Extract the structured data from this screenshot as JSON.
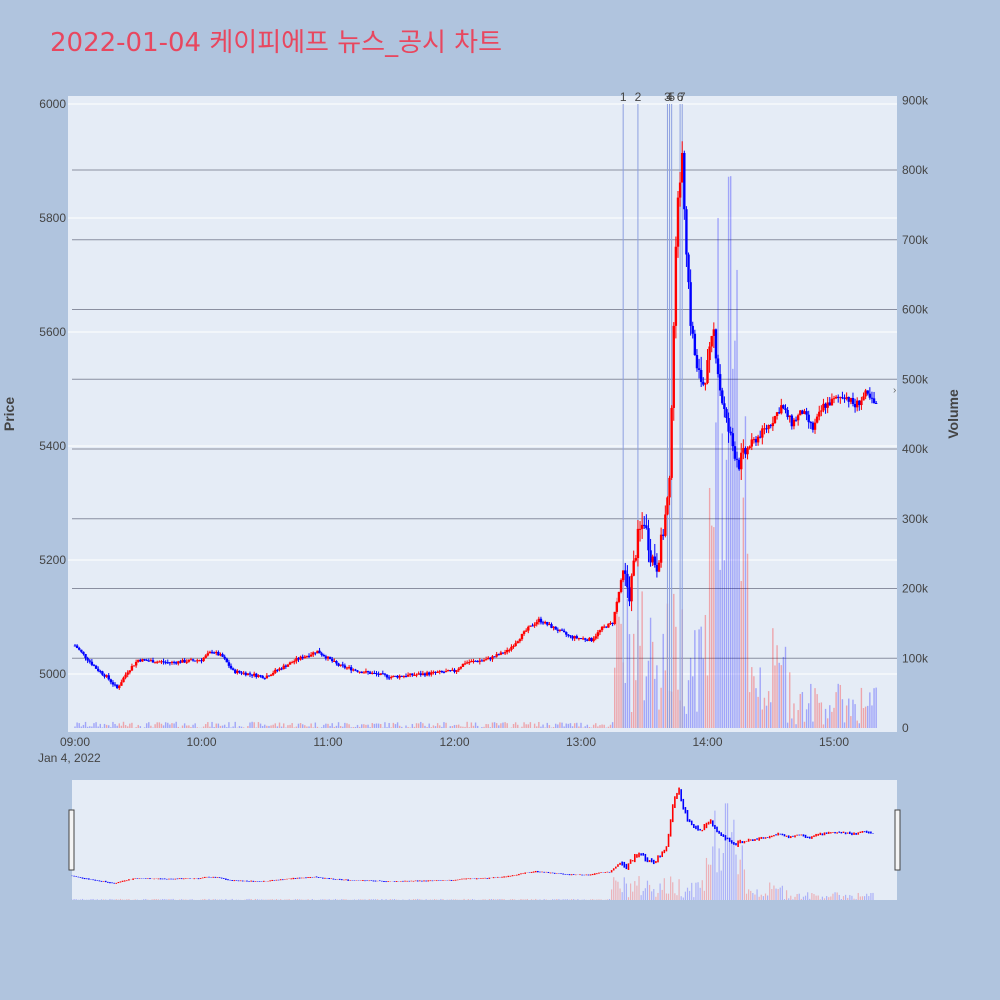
{
  "title": "2022-01-04 케이피에프 뉴스_공시 차트",
  "colors": {
    "up": "#ff0000",
    "down": "#0000ff",
    "background": "#b0c4de",
    "plot": "#e5ecf6",
    "title": "#e8475f"
  },
  "chart_data": {
    "type": "candlestick",
    "title": "2022-01-04 케이피에프 뉴스_공시 차트",
    "ylabel": "Price",
    "y2label": "Volume",
    "ylim": [
      4900,
      6010
    ],
    "y2lim": [
      0,
      900000
    ],
    "yticks": [
      "5000",
      "5200",
      "5400",
      "5600",
      "5800",
      "6000"
    ],
    "y2ticks": [
      "0",
      "100k",
      "200k",
      "300k",
      "400k",
      "500k",
      "600k",
      "700k",
      "800k",
      "900k"
    ],
    "xticks": [
      "09:00",
      "10:00",
      "11:00",
      "12:00",
      "13:00",
      "14:00",
      "15:00"
    ],
    "date_label": "Jan 4, 2022",
    "news_markers": [
      {
        "label": "1",
        "time": "13:20"
      },
      {
        "label": "2",
        "time": "13:27"
      },
      {
        "label": "3",
        "time": "13:41"
      },
      {
        "label": "4",
        "time": "13:42"
      },
      {
        "label": "5",
        "time": "13:43"
      },
      {
        "label": "6",
        "time": "13:47"
      },
      {
        "label": "7",
        "time": "13:48"
      }
    ],
    "price_keypoints": [
      [
        "09:00",
        5050
      ],
      [
        "09:05",
        5030
      ],
      [
        "09:10",
        5010
      ],
      [
        "09:15",
        4995
      ],
      [
        "09:20",
        4975
      ],
      [
        "09:25",
        5005
      ],
      [
        "09:30",
        5025
      ],
      [
        "09:45",
        5020
      ],
      [
        "10:00",
        5025
      ],
      [
        "10:05",
        5040
      ],
      [
        "10:10",
        5030
      ],
      [
        "10:15",
        5005
      ],
      [
        "10:30",
        4995
      ],
      [
        "10:35",
        5005
      ],
      [
        "10:45",
        5025
      ],
      [
        "10:55",
        5040
      ],
      [
        "11:05",
        5015
      ],
      [
        "11:15",
        5005
      ],
      [
        "11:30",
        4995
      ],
      [
        "11:45",
        5000
      ],
      [
        "12:00",
        5005
      ],
      [
        "12:05",
        5020
      ],
      [
        "12:15",
        5025
      ],
      [
        "12:25",
        5040
      ],
      [
        "12:35",
        5080
      ],
      [
        "12:40",
        5095
      ],
      [
        "12:45",
        5085
      ],
      [
        "12:55",
        5065
      ],
      [
        "13:05",
        5060
      ],
      [
        "13:10",
        5080
      ],
      [
        "13:15",
        5090
      ],
      [
        "13:20",
        5180
      ],
      [
        "13:23",
        5140
      ],
      [
        "13:27",
        5240
      ],
      [
        "13:30",
        5270
      ],
      [
        "13:33",
        5210
      ],
      [
        "13:36",
        5190
      ],
      [
        "13:39",
        5250
      ],
      [
        "13:42",
        5330
      ],
      [
        "13:43",
        5480
      ],
      [
        "13:44",
        5620
      ],
      [
        "13:46",
        5850
      ],
      [
        "13:48",
        5900
      ],
      [
        "13:50",
        5750
      ],
      [
        "13:52",
        5620
      ],
      [
        "13:55",
        5530
      ],
      [
        "13:58",
        5510
      ],
      [
        "14:00",
        5540
      ],
      [
        "14:03",
        5600
      ],
      [
        "14:06",
        5500
      ],
      [
        "14:09",
        5440
      ],
      [
        "14:12",
        5400
      ],
      [
        "14:15",
        5370
      ],
      [
        "14:20",
        5400
      ],
      [
        "14:25",
        5420
      ],
      [
        "14:30",
        5440
      ],
      [
        "14:35",
        5470
      ],
      [
        "14:40",
        5440
      ],
      [
        "14:45",
        5460
      ],
      [
        "14:50",
        5430
      ],
      [
        "14:55",
        5470
      ],
      [
        "15:00",
        5480
      ],
      [
        "15:05",
        5490
      ],
      [
        "15:10",
        5470
      ],
      [
        "15:15",
        5490
      ],
      [
        "15:20",
        5470
      ]
    ]
  }
}
